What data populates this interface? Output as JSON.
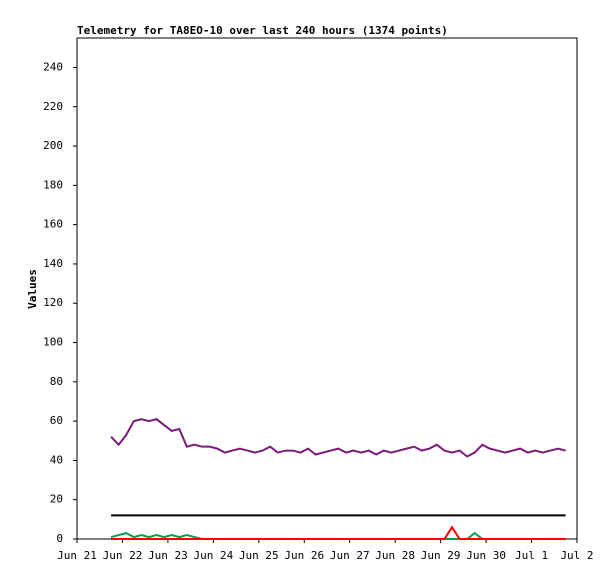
{
  "chart_data": {
    "type": "line",
    "title": "Telemetry for TA8EO-10 over last 240 hours (1374 points)",
    "ylabel": "Values",
    "xlim": [
      0,
      264
    ],
    "xticks": [
      {
        "value": 0,
        "label": "Jun 21"
      },
      {
        "value": 24,
        "label": "Jun 22"
      },
      {
        "value": 48,
        "label": "Jun 23"
      },
      {
        "value": 72,
        "label": "Jun 24"
      },
      {
        "value": 96,
        "label": "Jun 25"
      },
      {
        "value": 120,
        "label": "Jun 26"
      },
      {
        "value": 144,
        "label": "Jun 27"
      },
      {
        "value": 168,
        "label": "Jun 28"
      },
      {
        "value": 192,
        "label": "Jun 29"
      },
      {
        "value": 216,
        "label": "Jun 30"
      },
      {
        "value": 240,
        "label": "Jul 1"
      },
      {
        "value": 264,
        "label": "Jul 2"
      }
    ],
    "ylim": [
      0,
      255
    ],
    "yticks": [
      0,
      20,
      40,
      60,
      80,
      100,
      120,
      140,
      160,
      180,
      200,
      220,
      240
    ],
    "grid": false,
    "x": [
      18,
      22,
      26,
      30,
      34,
      38,
      42,
      46,
      50,
      54,
      58,
      62,
      66,
      70,
      74,
      78,
      82,
      86,
      90,
      94,
      98,
      102,
      106,
      110,
      114,
      118,
      122,
      126,
      130,
      134,
      138,
      142,
      146,
      150,
      154,
      158,
      162,
      166,
      170,
      174,
      178,
      182,
      186,
      190,
      194,
      198,
      202,
      206,
      210,
      214,
      218,
      222,
      226,
      230,
      234,
      238,
      242,
      246,
      250,
      254,
      258
    ],
    "series": [
      {
        "color": "#000000",
        "values": [
          12,
          12,
          12,
          12,
          12,
          12,
          12,
          12,
          12,
          12,
          12,
          12,
          12,
          12,
          12,
          12,
          12,
          12,
          12,
          12,
          12,
          12,
          12,
          12,
          12,
          12,
          12,
          12,
          12,
          12,
          12,
          12,
          12,
          12,
          12,
          12,
          12,
          12,
          12,
          12,
          12,
          12,
          12,
          12,
          12,
          12,
          12,
          12,
          12,
          12,
          12,
          12,
          12,
          12,
          12,
          12,
          12,
          12,
          12,
          12,
          12
        ]
      },
      {
        "color": "#1f77b4",
        "values": [
          0,
          0,
          0,
          0,
          0,
          0,
          0,
          0,
          0,
          0,
          0,
          0,
          0,
          0,
          0,
          0,
          0,
          0,
          0,
          0,
          0,
          0,
          0,
          0,
          0,
          0,
          0,
          0,
          0,
          0,
          0,
          0,
          0,
          0,
          0,
          0,
          0,
          0,
          0,
          0,
          0,
          0,
          0,
          0,
          0,
          0,
          0,
          0,
          0,
          0,
          0,
          0,
          0,
          0,
          0,
          0,
          0,
          0,
          0,
          0,
          0
        ]
      },
      {
        "color": "#00a050",
        "values": [
          1,
          2,
          3,
          1,
          2,
          1,
          2,
          1,
          2,
          1,
          2,
          1,
          0,
          0,
          0,
          0,
          0,
          0,
          0,
          0,
          0,
          0,
          0,
          0,
          0,
          0,
          0,
          0,
          0,
          0,
          0,
          0,
          0,
          0,
          0,
          0,
          0,
          0,
          0,
          0,
          0,
          0,
          0,
          0,
          0,
          0,
          0,
          0,
          3,
          0,
          0,
          0,
          0,
          0,
          0,
          0,
          0,
          0,
          0,
          0,
          0
        ]
      },
      {
        "color": "#ff0000",
        "values": [
          0,
          0,
          0,
          0,
          0,
          0,
          0,
          0,
          0,
          0,
          0,
          0,
          0,
          0,
          0,
          0,
          0,
          0,
          0,
          0,
          0,
          0,
          0,
          0,
          0,
          0,
          0,
          0,
          0,
          0,
          0,
          0,
          0,
          0,
          0,
          0,
          0,
          0,
          0,
          0,
          0,
          0,
          0,
          0,
          0,
          6,
          0,
          0,
          0,
          0,
          0,
          0,
          0,
          0,
          0,
          0,
          0,
          0,
          0,
          0,
          0
        ]
      },
      {
        "color": "#7a1a7a",
        "values": [
          52,
          48,
          53,
          60,
          61,
          60,
          61,
          58,
          55,
          56,
          47,
          48,
          47,
          47,
          46,
          44,
          45,
          46,
          45,
          44,
          45,
          47,
          44,
          45,
          45,
          44,
          46,
          43,
          44,
          45,
          46,
          44,
          45,
          44,
          45,
          43,
          45,
          44,
          45,
          46,
          47,
          45,
          46,
          48,
          45,
          44,
          45,
          42,
          44,
          48,
          46,
          45,
          44,
          45,
          46,
          44,
          45,
          44,
          45,
          46,
          45
        ]
      }
    ]
  }
}
